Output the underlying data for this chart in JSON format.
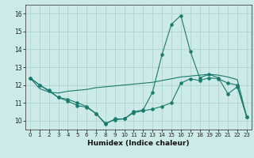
{
  "xlabel": "Humidex (Indice chaleur)",
  "x_values": [
    0,
    1,
    2,
    3,
    4,
    5,
    6,
    7,
    8,
    9,
    10,
    11,
    12,
    13,
    14,
    15,
    16,
    17,
    18,
    19,
    20,
    21,
    22,
    23
  ],
  "line1_spike": [
    12.4,
    12.0,
    11.7,
    11.3,
    11.2,
    11.0,
    10.8,
    10.4,
    9.8,
    10.1,
    10.1,
    10.5,
    10.6,
    11.6,
    13.7,
    15.4,
    15.9,
    13.9,
    12.4,
    12.6,
    12.4,
    11.5,
    11.9,
    10.2
  ],
  "line2_flat": [
    12.4,
    11.8,
    11.6,
    11.55,
    11.65,
    11.7,
    11.75,
    11.85,
    11.9,
    11.95,
    12.0,
    12.05,
    12.1,
    12.15,
    12.25,
    12.35,
    12.45,
    12.5,
    12.55,
    12.6,
    12.55,
    12.45,
    12.3,
    10.2
  ],
  "line3_dip": [
    12.4,
    12.0,
    11.65,
    11.3,
    11.1,
    10.85,
    10.75,
    10.4,
    9.85,
    10.05,
    10.1,
    10.45,
    10.55,
    10.65,
    10.8,
    11.0,
    12.1,
    12.35,
    12.25,
    12.4,
    12.35,
    12.1,
    12.0,
    10.2
  ],
  "line_color": "#1a7a6e",
  "bg_color": "#cceae7",
  "grid_color": "#aacfcc",
  "ylim": [
    9.5,
    16.5
  ],
  "xlim": [
    -0.5,
    23.5
  ],
  "yticks": [
    10,
    11,
    12,
    13,
    14,
    15,
    16
  ],
  "xticks": [
    0,
    1,
    2,
    3,
    4,
    5,
    6,
    7,
    8,
    9,
    10,
    11,
    12,
    13,
    14,
    15,
    16,
    17,
    18,
    19,
    20,
    21,
    22,
    23
  ]
}
